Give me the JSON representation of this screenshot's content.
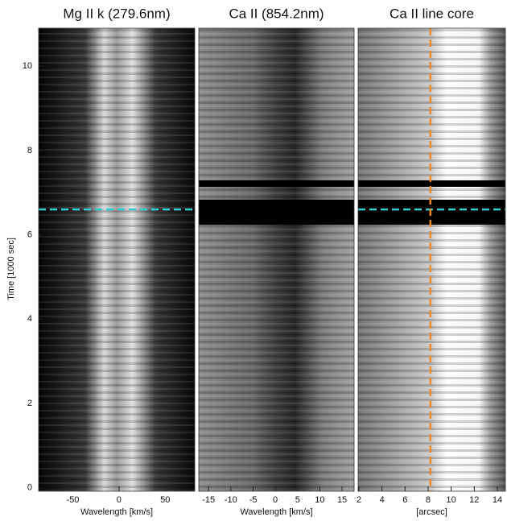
{
  "chart_data": [
    {
      "type": "heatmap",
      "title": "Mg II k (279.6nm)",
      "xlabel": "Wavelength [km/s]",
      "xlim": [
        -87,
        82
      ],
      "xticks": [
        -50,
        0,
        50
      ],
      "ylabel": "Time [1000 sec]",
      "ylim": [
        -0.08,
        10.9
      ],
      "yticks": [
        0,
        2,
        4,
        6,
        8,
        10
      ],
      "hline": {
        "value": 6.6,
        "color": "#33cccc"
      }
    },
    {
      "type": "heatmap",
      "title": "Ca II (854.2nm)",
      "xlabel": "Wavelength [km/s]",
      "xlim": [
        -17.2,
        17.7
      ],
      "xticks": [
        -15,
        -10,
        -5,
        0,
        5,
        10,
        15
      ]
    },
    {
      "type": "heatmap",
      "title": "Ca II line core",
      "xlabel": "[arcsec]",
      "xlim": [
        1.93,
        14.7
      ],
      "xticks": [
        2,
        4,
        6,
        8,
        10,
        12,
        14
      ],
      "hline": {
        "value": 6.6,
        "color": "#33cccc"
      },
      "vline": {
        "value": 8.2,
        "color": "#f08a24"
      }
    }
  ]
}
